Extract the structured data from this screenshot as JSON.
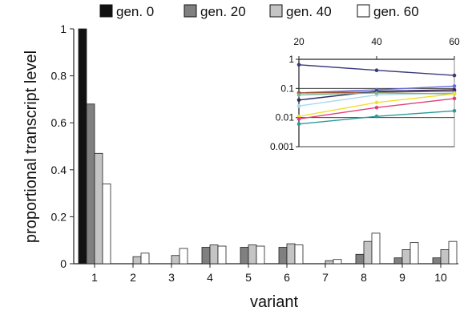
{
  "chart_data": [
    {
      "type": "bar",
      "categories": [
        "1",
        "2",
        "3",
        "4",
        "5",
        "6",
        "7",
        "8",
        "9",
        "10"
      ],
      "series": [
        {
          "name": "gen. 0",
          "values": [
            1.0,
            0,
            0,
            0,
            0,
            0,
            0,
            0,
            0,
            0
          ]
        },
        {
          "name": "gen. 20",
          "values": [
            0.68,
            0,
            0,
            0.07,
            0.07,
            0.07,
            0,
            0.04,
            0.025,
            0.025
          ]
        },
        {
          "name": "gen. 40",
          "values": [
            0.47,
            0.03,
            0.035,
            0.08,
            0.08,
            0.085,
            0.013,
            0.095,
            0.06,
            0.06
          ]
        },
        {
          "name": "gen. 60",
          "values": [
            0.34,
            0.045,
            0.065,
            0.075,
            0.075,
            0.08,
            0.018,
            0.13,
            0.09,
            0.095
          ]
        }
      ],
      "xlabel": "variant",
      "ylabel": "proportional transcript level",
      "ylim": [
        0,
        1
      ],
      "yticks": [
        "0",
        "0.2",
        "0.4",
        "0.6",
        "0.8",
        "1"
      ],
      "legend_position": "top",
      "colors": [
        "#111111",
        "#808080",
        "#c4c4c4",
        "#ffffff"
      ]
    },
    {
      "type": "line",
      "x": [
        20,
        40,
        60
      ],
      "xticks": [
        "20",
        "40",
        "60"
      ],
      "yscale": "log",
      "ylim": [
        0.001,
        1
      ],
      "yticks": [
        "0.001",
        "0.01",
        "0.1",
        "1"
      ],
      "xaxis_position": "top",
      "series": [
        {
          "values": [
            0.65,
            0.42,
            0.28
          ],
          "color": "#3a3a7a"
        },
        {
          "values": [
            0.07,
            0.09,
            0.12
          ],
          "color": "#6a6ad8"
        },
        {
          "values": [
            0.07,
            0.075,
            0.08
          ],
          "color": "#a0522d"
        },
        {
          "values": [
            0.04,
            0.08,
            0.09
          ],
          "color": "#2a2a6a"
        },
        {
          "values": [
            0.025,
            0.06,
            0.07
          ],
          "color": "#a8d8ec"
        },
        {
          "values": [
            0.06,
            0.07,
            0.065
          ],
          "color": "#7ab38a"
        },
        {
          "values": [
            0.011,
            0.033,
            0.065
          ],
          "color": "#f0e030"
        },
        {
          "values": [
            0.009,
            0.022,
            0.045
          ],
          "color": "#e0407a"
        },
        {
          "values": [
            0.006,
            0.011,
            0.017
          ],
          "color": "#2a9a9a"
        }
      ]
    }
  ]
}
